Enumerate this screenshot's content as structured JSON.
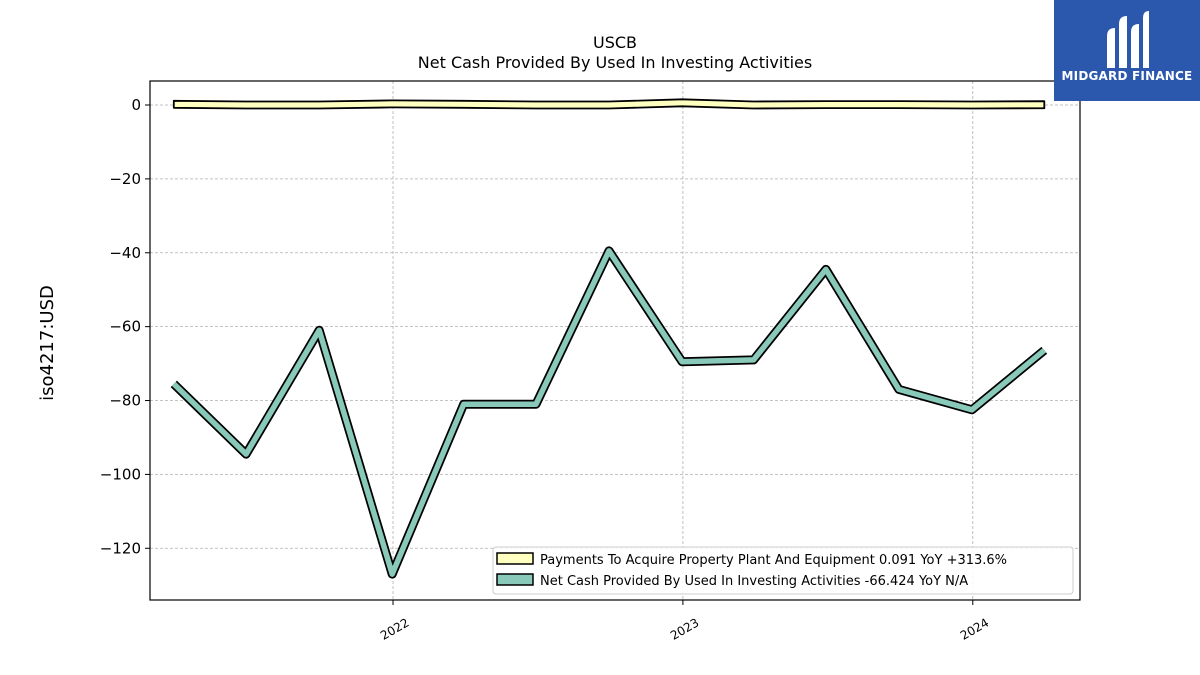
{
  "chart_data": {
    "type": "line",
    "title": "USCB",
    "subtitle": "Net Cash Provided By Used In Investing Activities",
    "ylabel": "iso4217:USD",
    "xlabel": "",
    "ylim": [
      -134,
      6.5
    ],
    "yticks": [
      0,
      -20,
      -40,
      -60,
      -80,
      -100,
      -120
    ],
    "xlim": [
      "2021-03-01",
      "2024-05-15"
    ],
    "xticks": [
      "2022",
      "2023",
      "2024"
    ],
    "grid": true,
    "legend_position": "lower-right",
    "series": [
      {
        "name": "Payments To Acquire Property Plant And Equipment",
        "legend_label": "Payments To Acquire Property Plant And Equipment  0.091 YoY +313.6%",
        "color": "#ffffc0",
        "edge_color": "#000000",
        "style": "band",
        "x": [
          "2021-03-31",
          "2021-06-30",
          "2021-09-30",
          "2021-12-31",
          "2022-03-31",
          "2022-06-30",
          "2022-09-30",
          "2022-12-31",
          "2023-03-31",
          "2023-06-30",
          "2023-09-30",
          "2023-12-31",
          "2024-03-31"
        ],
        "values": [
          0.2,
          0.0,
          0.0,
          0.3,
          0.2,
          0.0,
          0.0,
          0.6,
          0.0,
          0.1,
          0.1,
          0.0,
          0.09
        ]
      },
      {
        "name": "Net Cash Provided By Used In Investing Activities",
        "legend_label": "Net Cash Provided By Used In Investing Activities  -66.424 YoY N/A",
        "color": "#88c9b9",
        "edge_color": "#000000",
        "style": "thick-line",
        "x": [
          "2021-03-31",
          "2021-06-30",
          "2021-09-30",
          "2021-12-31",
          "2022-03-31",
          "2022-06-30",
          "2022-09-30",
          "2022-12-31",
          "2023-03-31",
          "2023-06-30",
          "2023-09-30",
          "2023-12-31",
          "2024-03-31"
        ],
        "values": [
          -75.5,
          -94.5,
          -61.0,
          -127.0,
          -81.0,
          -81.0,
          -39.5,
          -69.5,
          -69.0,
          -44.5,
          -77.0,
          -82.5,
          -66.4
        ]
      }
    ]
  },
  "logo": {
    "text": "MIDGARD FINANCE"
  }
}
